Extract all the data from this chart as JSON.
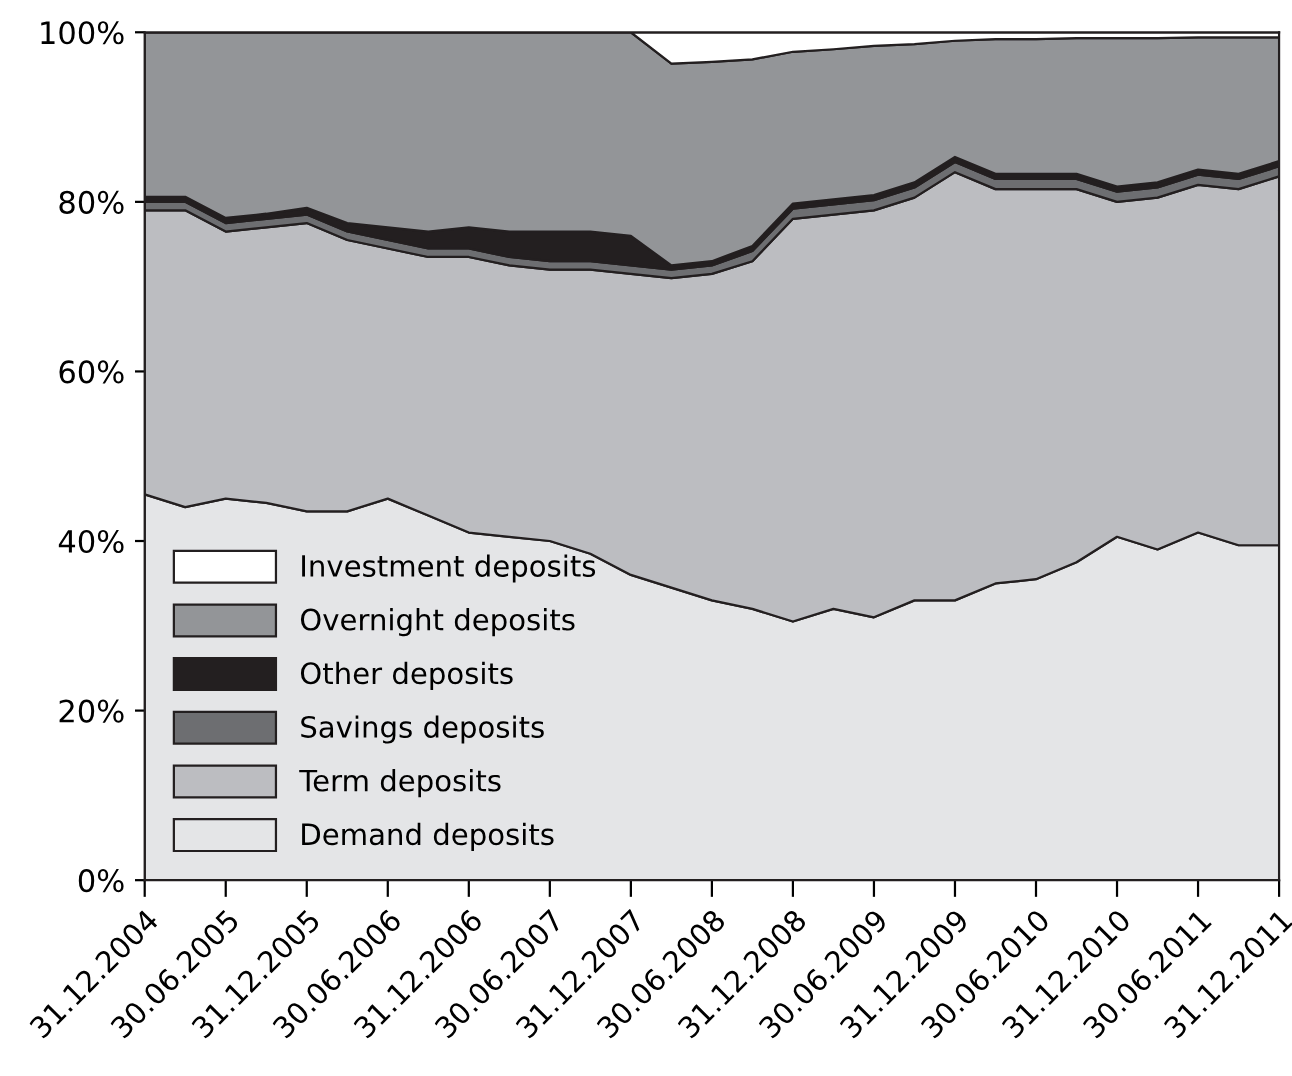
{
  "chart_data": {
    "type": "area",
    "stacked": true,
    "categories": [
      "31.12.2004",
      null,
      "30.06.2005",
      null,
      "31.12.2005",
      null,
      "30.06.2006",
      null,
      "31.12.2006",
      null,
      "30.06.2007",
      null,
      "31.12.2007",
      null,
      "30.06.2008",
      null,
      "31.12.2008",
      null,
      "30.06.2009",
      null,
      "31.12.2009",
      null,
      "30.06.2010",
      null,
      "31.12.2010",
      null,
      "30.06.2011",
      null,
      "31.12.2011"
    ],
    "series": [
      {
        "name": "Demand deposits",
        "color": "#e4e5e7",
        "values": [
          45.5,
          44,
          45,
          44.5,
          43.5,
          43.5,
          45,
          43,
          41,
          40.5,
          40,
          38.5,
          36,
          34.5,
          33,
          32,
          30.5,
          32,
          31,
          33,
          33,
          35,
          35.5,
          37.5,
          40.5,
          39,
          41,
          39.5,
          39.5
        ]
      },
      {
        "name": "Term deposits",
        "color": "#bcbdc1",
        "values": [
          33.5,
          35,
          31.5,
          32.5,
          34,
          32,
          29.5,
          30.5,
          32.5,
          32,
          32,
          33.5,
          35.5,
          36.5,
          38.5,
          41,
          47.5,
          46.5,
          48,
          47.5,
          50.5,
          46.5,
          46,
          44,
          39.5,
          41.5,
          41,
          42,
          43.5
        ]
      },
      {
        "name": "Savings deposits",
        "color": "#6d6e71",
        "values": [
          1,
          1,
          1,
          1,
          1,
          1,
          1,
          1,
          1,
          1,
          1,
          1,
          1,
          1,
          1,
          1.2,
          1.2,
          1.2,
          1.2,
          1.2,
          1.2,
          1.2,
          1.2,
          1.2,
          1.2,
          1.2,
          1.2,
          1.2,
          1.2
        ]
      },
      {
        "name": "Other deposits",
        "color": "#231f20",
        "values": [
          0.6,
          0.6,
          0.6,
          0.6,
          0.8,
          1,
          1.5,
          2,
          2.5,
          3,
          3.5,
          3.5,
          3.5,
          0.5,
          0.5,
          0.6,
          0.6,
          0.6,
          0.6,
          0.6,
          0.6,
          0.6,
          0.6,
          0.6,
          0.6,
          0.6,
          0.6,
          0.6,
          0.6
        ]
      },
      {
        "name": "Overnight deposits",
        "color": "#939598",
        "values": [
          19.4,
          19.4,
          21.9,
          21.4,
          20.7,
          22.5,
          23,
          23.5,
          23,
          23.5,
          23.5,
          23.5,
          24,
          23.8,
          23.5,
          22,
          17.9,
          17.7,
          17.6,
          16.3,
          13.7,
          15.9,
          15.9,
          16,
          17.5,
          17,
          15.6,
          16.1,
          14.6
        ]
      },
      {
        "name": "Investment deposits",
        "color": "#ffffff",
        "values": [
          0,
          0,
          0,
          0,
          0,
          0,
          0,
          0,
          0,
          0,
          0,
          0,
          0,
          3.7,
          3.5,
          3.2,
          2.3,
          2,
          1.6,
          1.4,
          1,
          0.8,
          0.8,
          0.7,
          0.7,
          0.7,
          0.6,
          0.6,
          0.6
        ]
      }
    ],
    "ylim": [
      0,
      100
    ],
    "yticks": [
      {
        "value": 0,
        "label": "0%"
      },
      {
        "value": 20,
        "label": "20%"
      },
      {
        "value": 40,
        "label": "40%"
      },
      {
        "value": 60,
        "label": "60%"
      },
      {
        "value": 80,
        "label": "80%"
      },
      {
        "value": 100,
        "label": "100%"
      }
    ],
    "legend": "bottom left"
  }
}
